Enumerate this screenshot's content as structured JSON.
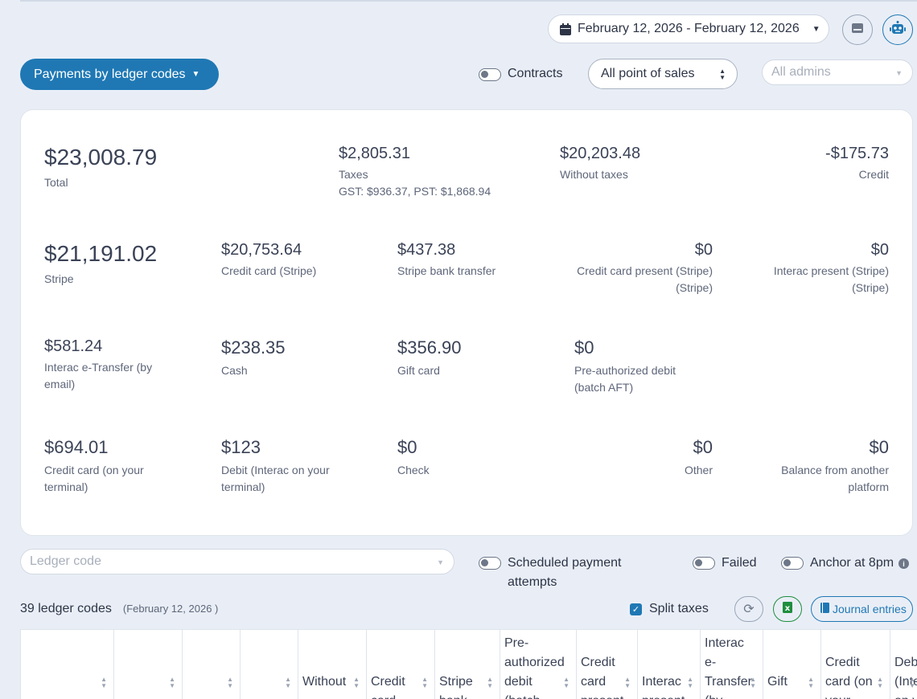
{
  "header": {
    "date_range": "February 12, 2026 - February 12, 2026",
    "report_button": "Payments by ledger codes",
    "contracts_toggle_label": "Contracts",
    "pos_select_value": "All point of sales",
    "admins_select_placeholder": "All admins"
  },
  "summary": {
    "total": {
      "amount": "$23,008.79",
      "label": "Total"
    },
    "taxes": {
      "amount": "$2,805.31",
      "label": "Taxes",
      "detail": "GST: $936.37, PST: $1,868.94"
    },
    "without_taxes": {
      "amount": "$20,203.48",
      "label": "Without taxes"
    },
    "credit": {
      "amount": "-$175.73",
      "label": "Credit"
    },
    "stripe": {
      "amount": "$21,191.02",
      "label": "Stripe"
    },
    "credit_card_stripe": {
      "amount": "$20,753.64",
      "label": "Credit card (Stripe)"
    },
    "stripe_bank_transfer": {
      "amount": "$437.38",
      "label": "Stripe bank transfer"
    },
    "credit_card_present": {
      "amount": "$0",
      "label": "Credit card present (Stripe) (Stripe)"
    },
    "interac_present": {
      "amount": "$0",
      "label": "Interac present (Stripe) (Stripe)"
    },
    "interac_etransfer": {
      "amount": "$581.24",
      "label": "Interac e-Transfer (by email)"
    },
    "cash": {
      "amount": "$238.35",
      "label": "Cash"
    },
    "gift_card": {
      "amount": "$356.90",
      "label": "Gift card"
    },
    "preauthorized_debit": {
      "amount": "$0",
      "label": "Pre-authorized debit (batch AFT)"
    },
    "credit_card_terminal": {
      "amount": "$694.01",
      "label": "Credit card (on your terminal)"
    },
    "debit_terminal": {
      "amount": "$123",
      "label": "Debit (Interac on your terminal)"
    },
    "check": {
      "amount": "$0",
      "label": "Check"
    },
    "other": {
      "amount": "$0",
      "label": "Other"
    },
    "balance_other_platform": {
      "amount": "$0",
      "label": "Balance from another platform"
    }
  },
  "filters": {
    "ledger_code_placeholder": "Ledger code",
    "scheduled_toggle_label": "Scheduled payment attempts",
    "failed_toggle_label": "Failed",
    "anchor_toggle_label": "Anchor at 8pm"
  },
  "table_header": {
    "count_label": "39 ledger codes",
    "date_sub": "(February 12, 2026 )",
    "split_taxes_label": "Split taxes",
    "journal_button": "Journal entries",
    "columns": [
      "",
      "",
      "",
      "",
      "Without",
      "Credit\ncard",
      "Stripe\nbank",
      "Pre-\nauthorized\ndebit\n(batch",
      "Credit\ncard\npresent",
      "Interac\npresent",
      "Interac\ne-\nTransfer\n(by",
      "Gift",
      "Credit\ncard (on\nyour",
      "Debi\n(Inte\non y"
    ]
  },
  "colors": {
    "accent": "#1f78b4",
    "background": "#e9eef6",
    "excel_green": "#1e8e3e"
  },
  "icons": {
    "calendar": "calendar-icon",
    "card_view": "card-view-icon",
    "robot": "robot-icon",
    "refresh": "refresh-icon",
    "excel": "excel-icon",
    "book": "book-icon",
    "info": "info-icon"
  }
}
